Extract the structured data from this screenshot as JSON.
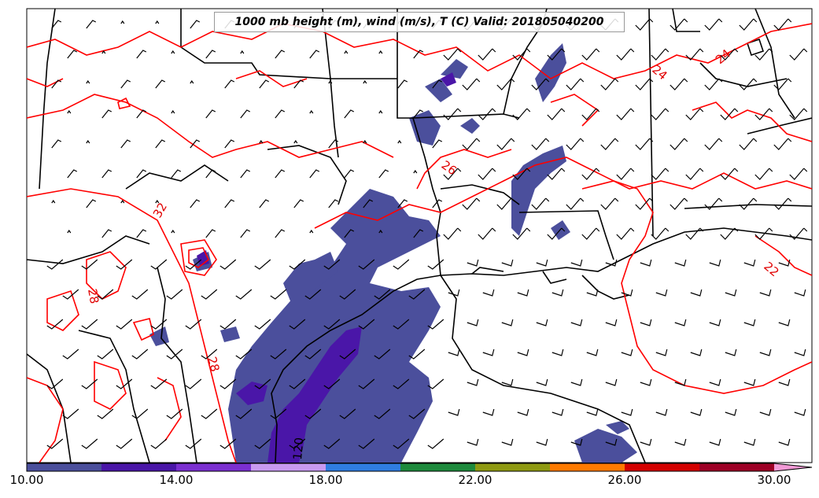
{
  "title": "1000 mb height (m), wind (m/s), T (C) Valid: 201805040200",
  "contour_labels": {
    "temp": [
      "24",
      "24",
      "26",
      "32",
      "28",
      "28",
      "22"
    ],
    "height": [
      "120"
    ]
  },
  "colorbar": {
    "ticks": [
      "10.00",
      "14.00",
      "18.00",
      "22.00",
      "26.00",
      "30.00"
    ],
    "colors": [
      "#4b4f9c",
      "#4a16a8",
      "#7b2fd1",
      "#c89af0",
      "#2f7de0",
      "#1e8a3c",
      "#8f9a12",
      "#ff7a00",
      "#d40000",
      "#9e0026",
      "#e0339e",
      "#f29ad6"
    ]
  },
  "colors": {
    "temp_contour": "#ff0000",
    "height_contour": "#000000",
    "wind_shade": "#4b4f9c",
    "wind_shade_strong": "#4a16a8"
  }
}
